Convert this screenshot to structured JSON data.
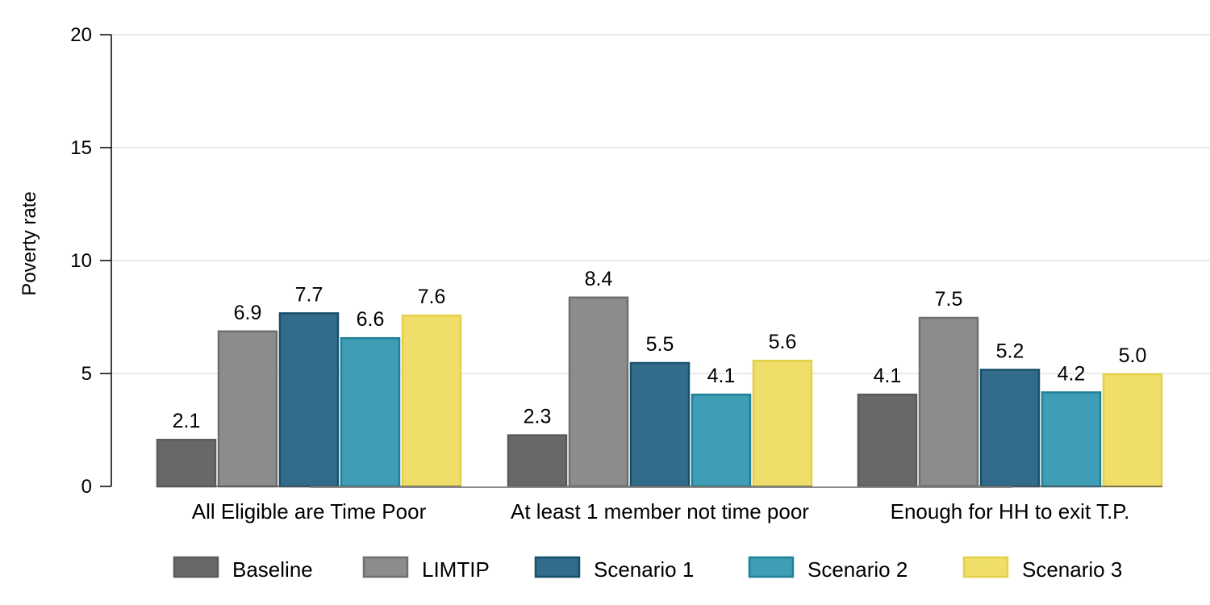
{
  "chart_data": {
    "type": "bar",
    "title": "",
    "xlabel": "",
    "ylabel": "Poverty rate",
    "ylim": [
      0,
      20
    ],
    "yticks": [
      0,
      5,
      10,
      15,
      20
    ],
    "grid": "horizontal",
    "legend_position": "bottom",
    "categories": [
      "All Eligible are Time Poor",
      "At least 1 member not time poor",
      "Enough for HH to exit T.P."
    ],
    "series": [
      {
        "name": "Baseline",
        "values": [
          2.1,
          2.3,
          4.1
        ],
        "labels": [
          "2.1",
          "2.3",
          "4.1"
        ],
        "color": "#686868",
        "border": "#5a5a5a"
      },
      {
        "name": "LIMTIP",
        "values": [
          6.9,
          8.4,
          7.5
        ],
        "labels": [
          "6.9",
          "8.4",
          "7.5"
        ],
        "color": "#8c8c8c",
        "border": "#6f6f6f"
      },
      {
        "name": "Scenario 1",
        "values": [
          7.7,
          5.5,
          5.2
        ],
        "labels": [
          "7.7",
          "5.5",
          "5.2"
        ],
        "color": "#326c8a",
        "border": "#16506c"
      },
      {
        "name": "Scenario 2",
        "values": [
          6.6,
          4.1,
          4.2
        ],
        "labels": [
          "6.6",
          "4.1",
          "4.2"
        ],
        "color": "#3f9db5",
        "border": "#1f8298"
      },
      {
        "name": "Scenario 3",
        "values": [
          7.6,
          5.6,
          5.0
        ],
        "labels": [
          "7.6",
          "5.6",
          "5.0"
        ],
        "color": "#efde6a",
        "border": "#e6d048"
      }
    ]
  }
}
